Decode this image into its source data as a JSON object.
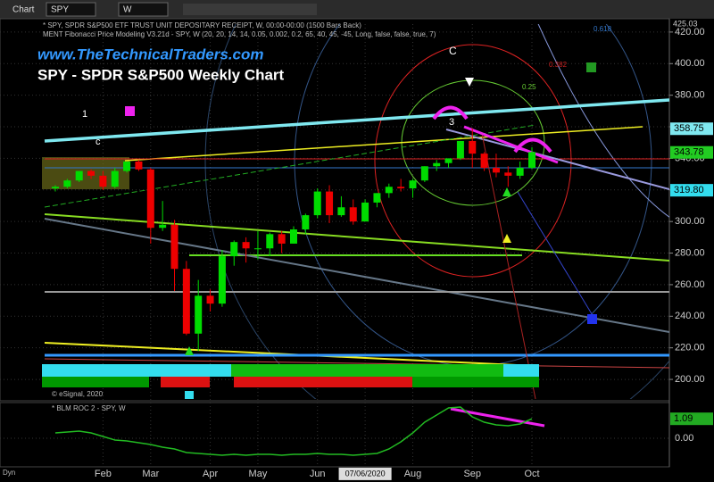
{
  "toolbar": {
    "window": "Chart",
    "symbol": "SPY",
    "interval": "W"
  },
  "header": {
    "line1": "* SPY, SPDR S&P500 ETF TRUST UNIT DEPOSITARY RECEIPT, W, 00:00-00:00 (1500 Bars Back)",
    "line2": "MENT Fibonacci Price Modeling V3.21d - SPY, W (20, 20, 14, 14, 0.05, 0.002, 0.2, 65, 40, 45, -45, Long, false, false, true, 7)",
    "copyright": "© eSignal, 2020",
    "dyn": "Dyn"
  },
  "chart_data": [
    {
      "type": "candlestick",
      "title": "SPY - SPDR S&P500 Weekly Chart",
      "subtitle": "www.TheTechnicalTraders.com",
      "annotations": [
        "1",
        "c",
        "C",
        "3",
        "0.25",
        "0.618",
        "0.382"
      ],
      "up_color": "#00dd00",
      "down_color": "#ee0000",
      "open": [
        321,
        322,
        326,
        332,
        329,
        322,
        332,
        338,
        333,
        296,
        298,
        270,
        229,
        253,
        248,
        278,
        287,
        283,
        283,
        292,
        286,
        295,
        304,
        319,
        304,
        309,
        300,
        312,
        318,
        322,
        321,
        326,
        335,
        337,
        340,
        351,
        343,
        334,
        331,
        329,
        334
      ],
      "high": [
        323,
        327,
        332,
        333,
        332,
        334,
        338,
        339,
        334,
        313,
        301,
        275,
        263,
        257,
        282,
        288,
        290,
        294,
        293,
        294,
        297,
        305,
        321,
        323,
        316,
        314,
        314,
        318,
        324,
        327,
        327,
        335,
        339,
        340,
        351,
        359,
        344,
        343,
        335,
        338,
        347
      ],
      "low": [
        319,
        321,
        325,
        327,
        320,
        321,
        331,
        332,
        286,
        294,
        256,
        228,
        218,
        243,
        246,
        272,
        274,
        276,
        278,
        280,
        286,
        292,
        302,
        299,
        303,
        298,
        300,
        309,
        315,
        319,
        315,
        325,
        332,
        334,
        339,
        334,
        332,
        328,
        322,
        327,
        333
      ],
      "close": [
        322,
        326,
        332,
        329,
        322,
        332,
        338,
        333,
        296,
        298,
        270,
        229,
        253,
        248,
        278,
        287,
        283,
        283,
        292,
        286,
        295,
        304,
        319,
        304,
        309,
        300,
        312,
        318,
        322,
        321,
        326,
        335,
        337,
        340,
        351,
        343,
        334,
        331,
        329,
        334,
        344
      ],
      "xticks": [
        {
          "value": 4,
          "label": "Feb"
        },
        {
          "value": 8,
          "label": "Mar"
        },
        {
          "value": 13,
          "label": "Apr"
        },
        {
          "value": 17,
          "label": "May"
        },
        {
          "value": 22,
          "label": "Jun"
        },
        {
          "value": 26,
          "label": "07/06/2020"
        },
        {
          "value": 30,
          "label": "Aug"
        },
        {
          "value": 35,
          "label": "Sep"
        },
        {
          "value": 40,
          "label": "Oct"
        }
      ],
      "ylim": [
        187.6,
        425.03
      ],
      "ymax_label": "425.03",
      "yticks": [
        {
          "value": 200,
          "label": "200.00"
        },
        {
          "value": 220,
          "label": "220.00"
        },
        {
          "value": 240,
          "label": "240.00"
        },
        {
          "value": 260,
          "label": "260.00"
        },
        {
          "value": 280,
          "label": "280.00"
        },
        {
          "value": 300,
          "label": "300.00"
        },
        {
          "value": 320,
          "label": "320.00"
        },
        {
          "value": 340,
          "label": "340.00"
        },
        {
          "value": 360,
          "label": "360.00"
        },
        {
          "value": 380,
          "label": "380.00"
        },
        {
          "value": 400,
          "label": "400.00"
        },
        {
          "value": 420,
          "label": "420.00"
        }
      ],
      "price_markers": [
        358.75,
        343.78,
        {
          "value": 319.8,
          "label": "319.80"
        }
      ],
      "price_marker_colors": [
        "#7fe8f0",
        "#22cc22",
        "#33ddee"
      ],
      "grid": true
    },
    {
      "type": "line",
      "title": "* BLM ROC 2 - SPY, W",
      "series": [
        {
          "name": "BLM ROC 2",
          "color": "#22bb22",
          "values": [
            0.3,
            0.35,
            0.4,
            0.3,
            0.1,
            -0.1,
            -0.15,
            -0.25,
            -0.35,
            -0.5,
            -0.6,
            -0.8,
            -0.85,
            -0.9,
            -0.95,
            -0.9,
            -0.95,
            -0.9,
            -0.9,
            -0.95,
            -0.9,
            -0.9,
            -0.85,
            -0.9,
            -0.9,
            -0.95,
            -0.9,
            -0.85,
            -0.6,
            -0.2,
            0.3,
            0.9,
            1.3,
            1.7,
            1.75,
            1.2,
            0.9,
            0.75,
            0.7,
            0.8,
            1.09
          ]
        }
      ],
      "last_value": 1.09,
      "ylim": [
        -1.5,
        1.9
      ],
      "yticks": [
        {
          "value": 0,
          "label": "0.00"
        }
      ]
    }
  ]
}
